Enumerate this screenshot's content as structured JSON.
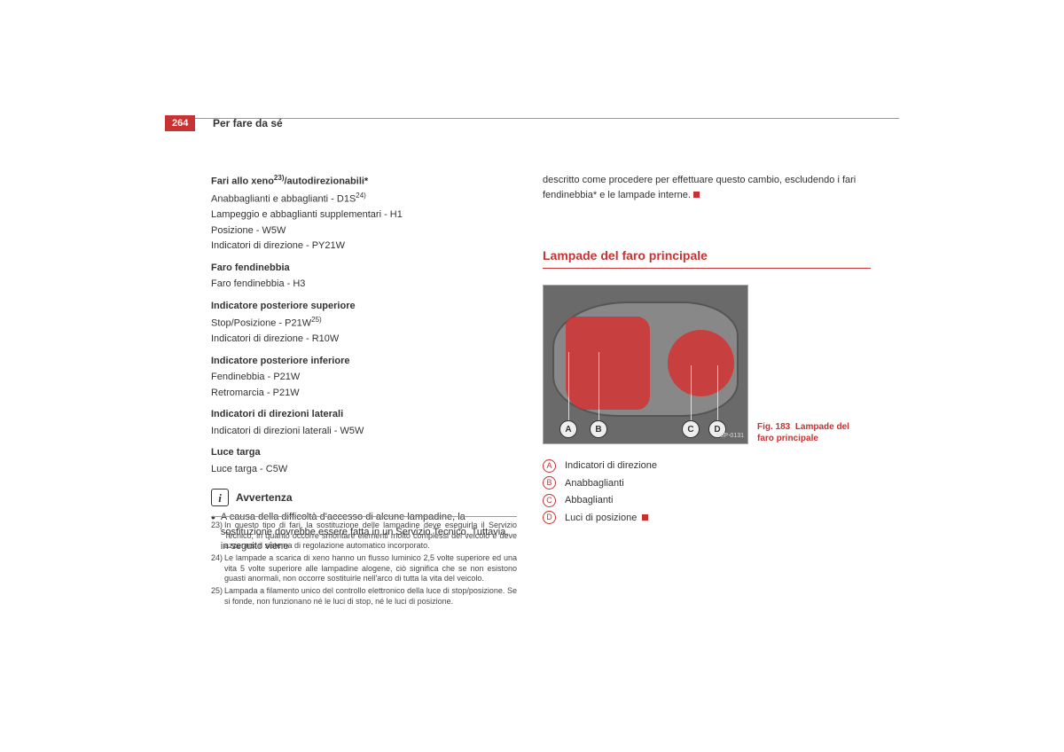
{
  "header": {
    "page_number": "264",
    "section_title": "Per fare da sé"
  },
  "left": {
    "groups": [
      {
        "title": "Fari allo xeno",
        "title_sup": "23)",
        "title_suffix": "/autodirezionabili*",
        "lines": [
          {
            "text": "Anabbaglianti e abbaglianti - D1S",
            "sup": "24)"
          },
          {
            "text": "Lampeggio e abbaglianti supplementari - H1"
          },
          {
            "text": "Posizione - W5W"
          },
          {
            "text": "Indicatori di direzione - PY21W"
          }
        ]
      },
      {
        "title": "Faro fendinebbia",
        "lines": [
          {
            "text": "Faro fendinebbia - H3"
          }
        ]
      },
      {
        "title": "Indicatore posteriore superiore",
        "lines": [
          {
            "text": "Stop/Posizione - P21W",
            "sup": "25)"
          },
          {
            "text": "Indicatori di direzione - R10W"
          }
        ]
      },
      {
        "title": "Indicatore posteriore inferiore",
        "lines": [
          {
            "text": "Fendinebbia - P21W"
          },
          {
            "text": "Retromarcia - P21W"
          }
        ]
      },
      {
        "title": "Indicatori di direzioni laterali",
        "lines": [
          {
            "text": "Indicatori di direzioni laterali - W5W"
          }
        ]
      },
      {
        "title": "Luce targa",
        "lines": [
          {
            "text": "Luce targa - C5W"
          }
        ]
      }
    ],
    "note": {
      "icon": "i",
      "title": "Avvertenza",
      "text": "A causa della difficoltà d'accesso di alcune lampadine, la sostituzione dovrebbe essere fatta in un Servizio Tecnico. Tuttavia, in seguito viene"
    }
  },
  "footnotes": [
    {
      "num": "23)",
      "text": "In questo tipo di fari, la sostituzione delle lampadine deve eseguirla il Servizio Tecnico, in quanto occorre smontare elementi molto complessi del veicolo e deve azzerarsi il sistema di regolazione automatico incorporato."
    },
    {
      "num": "24)",
      "text": "Le lampade a scarica di xeno hanno un flusso luminico 2,5 volte superiore ed una vita 5 volte superiore alle lampadine alogene, ciò significa che se non esistono guasti anormali, non occorre sostituirle nell'arco di tutta la vita del veicolo."
    },
    {
      "num": "25)",
      "text": "Lampada a filamento unico del controllo elettronico della luce di stop/posizione. Se si fonde, non funzionano né le luci di stop, né le luci di posizione."
    }
  ],
  "right": {
    "continuation": "descritto come procedere per effettuare questo cambio, escludendo i fari fendinebbia* e le lampade interne.",
    "heading": "Lampade del faro principale",
    "figure": {
      "markers": [
        "A",
        "B",
        "C",
        "D"
      ],
      "label": "B5P-0131",
      "caption_prefix": "Fig. 183",
      "caption_text": "Lampade del faro principale"
    },
    "legend": [
      {
        "key": "A",
        "text": "Indicatori di direzione"
      },
      {
        "key": "B",
        "text": "Anabbaglianti"
      },
      {
        "key": "C",
        "text": "Abbaglianti"
      },
      {
        "key": "D",
        "text": "Luci di posizione"
      }
    ]
  },
  "colors": {
    "brand_red": "#c83232"
  }
}
